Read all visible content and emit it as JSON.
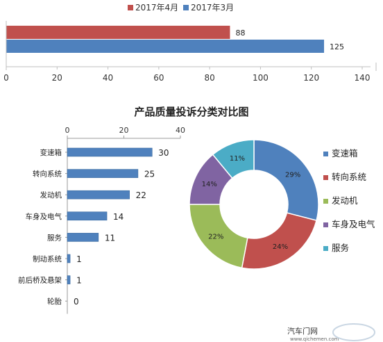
{
  "top_chart": {
    "legend": [
      {
        "name": "2017年4月",
        "color": "#c0504d"
      },
      {
        "name": "2017年3月",
        "color": "#4f81bd"
      }
    ]
  },
  "chart_data": [
    {
      "type": "bar",
      "orientation": "horizontal",
      "series": [
        {
          "name": "2017年4月",
          "values": [
            88
          ],
          "color": "#c0504d"
        },
        {
          "name": "2017年3月",
          "values": [
            125
          ],
          "color": "#4f81bd"
        }
      ],
      "xlim": [
        0,
        140
      ],
      "xticks": [
        0,
        20,
        40,
        60,
        80,
        100,
        120,
        140
      ],
      "legend_position": "top"
    },
    {
      "type": "bar",
      "orientation": "horizontal",
      "title": "产品质量投诉分类对比图",
      "categories": [
        "变速箱",
        "转向系统",
        "发动机",
        "车身及电气",
        "服务",
        "制动系统",
        "前后桥及悬架",
        "轮胎"
      ],
      "values": [
        30,
        25,
        22,
        14,
        11,
        1,
        1,
        0
      ],
      "color": "#4f81bd",
      "xlim": [
        0,
        40
      ],
      "xticks": [
        0,
        20,
        40
      ],
      "axis_position": "top"
    },
    {
      "type": "pie",
      "donut": true,
      "labels": [
        "变速箱",
        "转向系统",
        "发动机",
        "车身及电气",
        "服务"
      ],
      "values": [
        29,
        24,
        22,
        14,
        11
      ],
      "value_labels": [
        "29%",
        "24%",
        "22%",
        "14%",
        "11%"
      ],
      "colors": [
        "#4f81bd",
        "#c0504d",
        "#9bbb59",
        "#8064a2",
        "#4bacc6"
      ],
      "legend_position": "right"
    }
  ],
  "watermark": {
    "text": "汽车门网",
    "url": "www.qichemen.com"
  }
}
